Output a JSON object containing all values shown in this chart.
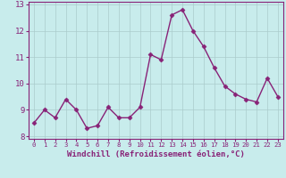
{
  "x": [
    0,
    1,
    2,
    3,
    4,
    5,
    6,
    7,
    8,
    9,
    10,
    11,
    12,
    13,
    14,
    15,
    16,
    17,
    18,
    19,
    20,
    21,
    22,
    23
  ],
  "y": [
    8.5,
    9.0,
    8.7,
    9.4,
    9.0,
    8.3,
    8.4,
    9.1,
    8.7,
    8.7,
    9.1,
    11.1,
    10.9,
    12.6,
    12.8,
    12.0,
    11.4,
    10.6,
    9.9,
    9.6,
    9.4,
    9.3,
    10.2,
    9.5
  ],
  "line_color": "#882277",
  "marker": "D",
  "marker_size": 2.5,
  "linewidth": 1.0,
  "xlabel": "Windchill (Refroidissement éolien,°C)",
  "xlabel_fontsize": 6.5,
  "xlim": [
    -0.5,
    23.5
  ],
  "ylim": [
    7.9,
    13.1
  ],
  "yticks": [
    8,
    9,
    10,
    11,
    12,
    13
  ],
  "xticks": [
    0,
    1,
    2,
    3,
    4,
    5,
    6,
    7,
    8,
    9,
    10,
    11,
    12,
    13,
    14,
    15,
    16,
    17,
    18,
    19,
    20,
    21,
    22,
    23
  ],
  "grid_color": "#aacccc",
  "background_color": "#c8ecec",
  "tick_color": "#882277",
  "spine_color": "#882277",
  "xtick_fontsize": 5.2,
  "ytick_fontsize": 6.5
}
